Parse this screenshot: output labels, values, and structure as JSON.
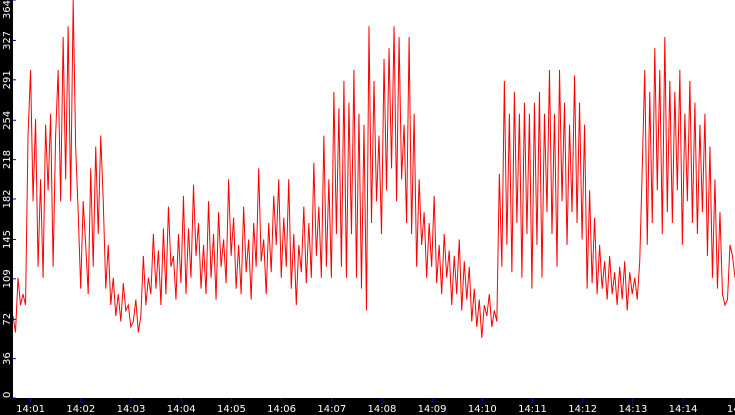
{
  "chart_data": {
    "type": "line",
    "title": "",
    "xlabel": "",
    "ylabel": "",
    "ylim": [
      0,
      364
    ],
    "grid": false,
    "legend": "none",
    "y_ticks": [
      "0",
      "36",
      "72",
      "109",
      "145",
      "182",
      "218",
      "254",
      "291",
      "327",
      "364"
    ],
    "x_ticks": [
      "14:01",
      "14:02",
      "14:03",
      "14:04",
      "14:05",
      "14:06",
      "14:07",
      "14:08",
      "14:09",
      "14:10",
      "14:11",
      "14:12",
      "14:13",
      "14:14",
      "14"
    ],
    "x_range": [
      "14:00:39",
      "14:15:02"
    ],
    "colors": {
      "line": "#ff0000",
      "axis_bg": "#000000",
      "axis_text": "#ffffff",
      "axis_marks": "#0000ff"
    },
    "series": [
      {
        "name": "",
        "points": [
          [
            0,
            75
          ],
          [
            5,
            60
          ],
          [
            10,
            110
          ],
          [
            15,
            85
          ],
          [
            20,
            95
          ],
          [
            25,
            85
          ],
          [
            30,
            240
          ],
          [
            35,
            300
          ],
          [
            40,
            180
          ],
          [
            45,
            255
          ],
          [
            50,
            120
          ],
          [
            55,
            200
          ],
          [
            60,
            110
          ],
          [
            65,
            250
          ],
          [
            70,
            190
          ],
          [
            75,
            260
          ],
          [
            80,
            120
          ],
          [
            85,
            240
          ],
          [
            90,
            300
          ],
          [
            95,
            180
          ],
          [
            100,
            330
          ],
          [
            105,
            200
          ],
          [
            110,
            340
          ],
          [
            115,
            180
          ],
          [
            120,
            364
          ],
          [
            125,
            230
          ],
          [
            130,
            170
          ],
          [
            135,
            100
          ],
          [
            140,
            180
          ],
          [
            145,
            140
          ],
          [
            150,
            95
          ],
          [
            155,
            210
          ],
          [
            160,
            120
          ],
          [
            165,
            230
          ],
          [
            170,
            150
          ],
          [
            175,
            240
          ],
          [
            180,
            180
          ],
          [
            185,
            100
          ],
          [
            190,
            140
          ],
          [
            195,
            85
          ],
          [
            200,
            110
          ],
          [
            205,
            75
          ],
          [
            210,
            95
          ],
          [
            215,
            70
          ],
          [
            220,
            105
          ],
          [
            225,
            80
          ],
          [
            230,
            85
          ],
          [
            235,
            65
          ],
          [
            240,
            70
          ],
          [
            245,
            90
          ],
          [
            250,
            60
          ],
          [
            255,
            75
          ],
          [
            260,
            130
          ],
          [
            265,
            85
          ],
          [
            270,
            110
          ],
          [
            275,
            95
          ],
          [
            280,
            150
          ],
          [
            285,
            100
          ],
          [
            290,
            135
          ],
          [
            295,
            85
          ],
          [
            300,
            155
          ],
          [
            305,
            95
          ],
          [
            310,
            175
          ],
          [
            315,
            120
          ],
          [
            320,
            130
          ],
          [
            325,
            90
          ],
          [
            330,
            150
          ],
          [
            335,
            105
          ],
          [
            340,
            185
          ],
          [
            345,
            95
          ],
          [
            350,
            155
          ],
          [
            355,
            110
          ],
          [
            360,
            195
          ],
          [
            365,
            130
          ],
          [
            370,
            160
          ],
          [
            375,
            100
          ],
          [
            380,
            140
          ],
          [
            385,
            95
          ],
          [
            390,
            180
          ],
          [
            395,
            110
          ],
          [
            400,
            150
          ],
          [
            405,
            90
          ],
          [
            410,
            170
          ],
          [
            415,
            120
          ],
          [
            420,
            145
          ],
          [
            425,
            105
          ],
          [
            430,
            200
          ],
          [
            435,
            130
          ],
          [
            440,
            165
          ],
          [
            445,
            100
          ],
          [
            450,
            140
          ],
          [
            455,
            95
          ],
          [
            460,
            175
          ],
          [
            465,
            115
          ],
          [
            470,
            145
          ],
          [
            475,
            90
          ],
          [
            480,
            160
          ],
          [
            485,
            120
          ],
          [
            490,
            210
          ],
          [
            495,
            125
          ],
          [
            500,
            145
          ],
          [
            505,
            95
          ],
          [
            510,
            160
          ],
          [
            515,
            115
          ],
          [
            520,
            185
          ],
          [
            525,
            140
          ],
          [
            530,
            200
          ],
          [
            535,
            110
          ],
          [
            540,
            165
          ],
          [
            545,
            120
          ],
          [
            550,
            200
          ],
          [
            555,
            100
          ],
          [
            560,
            150
          ],
          [
            565,
            85
          ],
          [
            570,
            140
          ],
          [
            575,
            115
          ],
          [
            580,
            175
          ],
          [
            585,
            105
          ],
          [
            590,
            160
          ],
          [
            595,
            110
          ],
          [
            600,
            215
          ],
          [
            605,
            130
          ],
          [
            610,
            175
          ],
          [
            615,
            110
          ],
          [
            620,
            240
          ],
          [
            625,
            120
          ],
          [
            630,
            200
          ],
          [
            635,
            110
          ],
          [
            640,
            280
          ],
          [
            645,
            150
          ],
          [
            650,
            265
          ],
          [
            655,
            120
          ],
          [
            660,
            290
          ],
          [
            665,
            110
          ],
          [
            670,
            270
          ],
          [
            675,
            150
          ],
          [
            680,
            300
          ],
          [
            685,
            110
          ],
          [
            690,
            260
          ],
          [
            695,
            100
          ],
          [
            700,
            250
          ],
          [
            705,
            80
          ],
          [
            710,
            340
          ],
          [
            715,
            160
          ],
          [
            720,
            290
          ],
          [
            725,
            180
          ],
          [
            730,
            240
          ],
          [
            735,
            150
          ],
          [
            740,
            310
          ],
          [
            745,
            190
          ],
          [
            750,
            320
          ],
          [
            755,
            210
          ],
          [
            760,
            340
          ],
          [
            765,
            180
          ],
          [
            770,
            330
          ],
          [
            775,
            200
          ],
          [
            780,
            250
          ],
          [
            785,
            160
          ],
          [
            790,
            330
          ],
          [
            795,
            150
          ],
          [
            800,
            260
          ],
          [
            805,
            120
          ],
          [
            810,
            200
          ],
          [
            815,
            140
          ],
          [
            820,
            170
          ],
          [
            825,
            110
          ],
          [
            830,
            160
          ],
          [
            835,
            120
          ],
          [
            840,
            185
          ],
          [
            845,
            105
          ],
          [
            850,
            140
          ],
          [
            855,
            95
          ],
          [
            860,
            150
          ],
          [
            865,
            110
          ],
          [
            870,
            135
          ],
          [
            875,
            85
          ],
          [
            880,
            130
          ],
          [
            885,
            95
          ],
          [
            890,
            145
          ],
          [
            895,
            80
          ],
          [
            900,
            125
          ],
          [
            905,
            90
          ],
          [
            910,
            120
          ],
          [
            915,
            70
          ],
          [
            920,
            100
          ],
          [
            925,
            65
          ],
          [
            930,
            90
          ],
          [
            935,
            55
          ],
          [
            940,
            85
          ],
          [
            945,
            75
          ],
          [
            950,
            95
          ],
          [
            955,
            65
          ],
          [
            960,
            80
          ],
          [
            965,
            70
          ],
          [
            970,
            205
          ],
          [
            975,
            120
          ],
          [
            980,
            290
          ],
          [
            985,
            140
          ],
          [
            990,
            260
          ],
          [
            995,
            115
          ],
          [
            1000,
            280
          ],
          [
            1005,
            160
          ],
          [
            1010,
            260
          ],
          [
            1015,
            110
          ],
          [
            1020,
            270
          ],
          [
            1025,
            150
          ],
          [
            1030,
            260
          ],
          [
            1035,
            100
          ],
          [
            1040,
            270
          ],
          [
            1045,
            140
          ],
          [
            1050,
            280
          ],
          [
            1055,
            110
          ],
          [
            1060,
            260
          ],
          [
            1065,
            170
          ],
          [
            1070,
            300
          ],
          [
            1075,
            150
          ],
          [
            1080,
            260
          ],
          [
            1085,
            120
          ],
          [
            1090,
            300
          ],
          [
            1095,
            180
          ],
          [
            1100,
            270
          ],
          [
            1105,
            140
          ],
          [
            1110,
            250
          ],
          [
            1115,
            170
          ],
          [
            1120,
            295
          ],
          [
            1125,
            160
          ],
          [
            1130,
            270
          ],
          [
            1135,
            145
          ],
          [
            1140,
            250
          ],
          [
            1145,
            100
          ],
          [
            1150,
            190
          ],
          [
            1155,
            105
          ],
          [
            1160,
            165
          ],
          [
            1165,
            95
          ],
          [
            1170,
            140
          ],
          [
            1175,
            100
          ],
          [
            1180,
            125
          ],
          [
            1185,
            90
          ],
          [
            1190,
            130
          ],
          [
            1195,
            95
          ],
          [
            1200,
            115
          ],
          [
            1205,
            85
          ],
          [
            1210,
            120
          ],
          [
            1215,
            90
          ],
          [
            1220,
            125
          ],
          [
            1225,
            80
          ],
          [
            1230,
            115
          ],
          [
            1235,
            95
          ],
          [
            1240,
            110
          ],
          [
            1245,
            90
          ],
          [
            1250,
            125
          ],
          [
            1255,
            210
          ],
          [
            1260,
            300
          ],
          [
            1265,
            140
          ],
          [
            1270,
            280
          ],
          [
            1275,
            160
          ],
          [
            1280,
            320
          ],
          [
            1285,
            190
          ],
          [
            1290,
            300
          ],
          [
            1295,
            150
          ],
          [
            1300,
            330
          ],
          [
            1305,
            170
          ],
          [
            1310,
            290
          ],
          [
            1315,
            160
          ],
          [
            1320,
            280
          ],
          [
            1325,
            190
          ],
          [
            1330,
            300
          ],
          [
            1335,
            140
          ],
          [
            1340,
            260
          ],
          [
            1345,
            180
          ],
          [
            1350,
            290
          ],
          [
            1355,
            160
          ],
          [
            1360,
            270
          ],
          [
            1365,
            150
          ],
          [
            1370,
            250
          ],
          [
            1375,
            170
          ],
          [
            1380,
            260
          ],
          [
            1385,
            130
          ],
          [
            1390,
            230
          ],
          [
            1395,
            110
          ],
          [
            1400,
            200
          ],
          [
            1405,
            100
          ],
          [
            1410,
            170
          ],
          [
            1415,
            95
          ],
          [
            1420,
            85
          ],
          [
            1425,
            90
          ],
          [
            1430,
            140
          ],
          [
            1435,
            130
          ],
          [
            1440,
            110
          ]
        ]
      }
    ]
  }
}
